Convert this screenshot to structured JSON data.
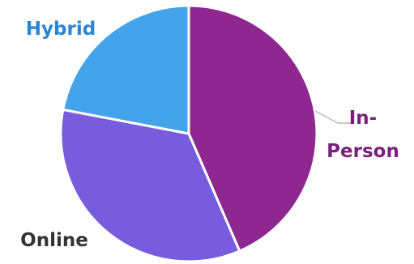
{
  "chart_data": {
    "type": "pie",
    "slices": [
      {
        "label": "In-Person",
        "value": 43.5,
        "color": "#8E278F",
        "label_color": "#7A1F7B"
      },
      {
        "label": "Online",
        "value": 34.5,
        "color": "#775DDD",
        "label_color": "#333333"
      },
      {
        "label": "Hybrid",
        "value": 22.0,
        "color": "#45A3EC",
        "label_color": "#2A85D6"
      }
    ],
    "start_angle": "12 o'clock",
    "direction": "clockwise"
  }
}
